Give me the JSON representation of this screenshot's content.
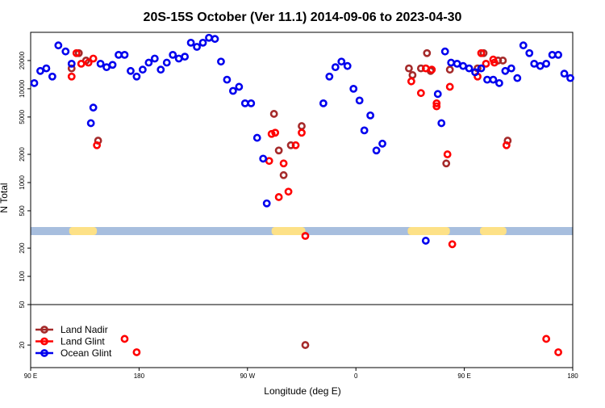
{
  "chart_data": {
    "type": "scatter",
    "title": "20S-15S October (Ver 11.1)   2014-09-06 to 2023-04-30",
    "xlabel": "Longitude (deg E)",
    "ylabel": "N Total",
    "x_range_deg": [
      90,
      540
    ],
    "xticks": [
      {
        "value": 90,
        "label": "90 E"
      },
      {
        "value": 180,
        "label": "180"
      },
      {
        "value": 270,
        "label": "90 W"
      },
      {
        "value": 360,
        "label": "0"
      },
      {
        "value": 450,
        "label": "90 E"
      },
      {
        "value": 540,
        "label": "180"
      }
    ],
    "yscale": "log",
    "upper_panel": {
      "ylim": [
        50,
        40000
      ],
      "yticks": [
        {
          "value": 50,
          "label": "50"
        },
        {
          "value": 100,
          "label": "100"
        },
        {
          "value": 200,
          "label": "200"
        },
        {
          "value": 500,
          "label": "500"
        },
        {
          "value": 1000,
          "label": "1000"
        },
        {
          "value": 2000,
          "label": "2000"
        },
        {
          "value": 5000,
          "label": "5000"
        },
        {
          "value": 10000,
          "label": "10000"
        },
        {
          "value": 20000,
          "label": "20000"
        }
      ]
    },
    "lower_panel": {
      "ylim": [
        12,
        50
      ],
      "yticks": [
        {
          "value": 20,
          "label": "20"
        }
      ]
    },
    "colors": {
      "land_nadir": "#a52a2a",
      "land_glint": "#ff0000",
      "ocean_glint": "#0000ee",
      "map_ocean": "#a7bede",
      "map_land": "#fde187"
    },
    "legend_position": "bottom-left",
    "series": [
      {
        "name": "Land Nadir",
        "color": "#a52a2a",
        "points": [
          [
            124,
            16500
          ],
          [
            130,
            24000
          ],
          [
            136,
            20000
          ],
          [
            146,
            2800
          ],
          [
            292,
            5400
          ],
          [
            296,
            2200
          ],
          [
            300,
            1200
          ],
          [
            306,
            2500
          ],
          [
            315,
            4000
          ],
          [
            404,
            16500
          ],
          [
            407,
            14000
          ],
          [
            414,
            16500
          ],
          [
            419,
            24000
          ],
          [
            422,
            15500
          ],
          [
            435,
            1600
          ],
          [
            438,
            16000
          ],
          [
            461,
            16500
          ],
          [
            466,
            24000
          ],
          [
            478,
            20000
          ],
          [
            482,
            20000
          ],
          [
            486,
            2800
          ],
          [
            318,
            20
          ]
        ]
      },
      {
        "name": "Land Glint",
        "color": "#ff0000",
        "points": [
          [
            124,
            13500
          ],
          [
            128,
            24000
          ],
          [
            132,
            18500
          ],
          [
            138,
            19000
          ],
          [
            142,
            21000
          ],
          [
            145,
            2500
          ],
          [
            168,
            23
          ],
          [
            178,
            17
          ],
          [
            288,
            1700
          ],
          [
            290,
            3300
          ],
          [
            293,
            3400
          ],
          [
            296,
            700
          ],
          [
            300,
            1600
          ],
          [
            304,
            800
          ],
          [
            310,
            2500
          ],
          [
            315,
            3400
          ],
          [
            318,
            270
          ],
          [
            406,
            12000
          ],
          [
            414,
            9000
          ],
          [
            418,
            16500
          ],
          [
            423,
            16000
          ],
          [
            427,
            7000
          ],
          [
            427,
            6500
          ],
          [
            436,
            2000
          ],
          [
            438,
            10500
          ],
          [
            440,
            220
          ],
          [
            461,
            13500
          ],
          [
            464,
            24000
          ],
          [
            468,
            18500
          ],
          [
            474,
            20500
          ],
          [
            475,
            19000
          ],
          [
            485,
            2500
          ],
          [
            518,
            23
          ],
          [
            528,
            17
          ]
        ]
      },
      {
        "name": "Ocean Glint",
        "color": "#0000ee",
        "points": [
          [
            93,
            11500
          ],
          [
            98,
            15500
          ],
          [
            103,
            16500
          ],
          [
            108,
            13500
          ],
          [
            113,
            29000
          ],
          [
            119,
            25000
          ],
          [
            124,
            18500
          ],
          [
            140,
            4300
          ],
          [
            142,
            6300
          ],
          [
            148,
            18500
          ],
          [
            153,
            17000
          ],
          [
            158,
            18000
          ],
          [
            163,
            23000
          ],
          [
            168,
            23000
          ],
          [
            173,
            15500
          ],
          [
            178,
            13500
          ],
          [
            183,
            16000
          ],
          [
            188,
            19000
          ],
          [
            193,
            21000
          ],
          [
            198,
            16000
          ],
          [
            203,
            19000
          ],
          [
            208,
            23000
          ],
          [
            213,
            21000
          ],
          [
            218,
            22000
          ],
          [
            223,
            31000
          ],
          [
            228,
            28000
          ],
          [
            233,
            31000
          ],
          [
            238,
            35000
          ],
          [
            243,
            34000
          ],
          [
            248,
            19500
          ],
          [
            253,
            12500
          ],
          [
            258,
            9500
          ],
          [
            263,
            10500
          ],
          [
            268,
            7000
          ],
          [
            273,
            7000
          ],
          [
            278,
            3000
          ],
          [
            283,
            1800
          ],
          [
            286,
            600
          ],
          [
            333,
            7000
          ],
          [
            338,
            13500
          ],
          [
            343,
            17000
          ],
          [
            348,
            19500
          ],
          [
            353,
            17500
          ],
          [
            358,
            10000
          ],
          [
            363,
            7500
          ],
          [
            367,
            3600
          ],
          [
            372,
            5200
          ],
          [
            377,
            2200
          ],
          [
            382,
            2600
          ],
          [
            418,
            240
          ],
          [
            428,
            8800
          ],
          [
            431,
            4300
          ],
          [
            434,
            25000
          ],
          [
            439,
            19000
          ],
          [
            444,
            18500
          ],
          [
            449,
            17500
          ],
          [
            454,
            16500
          ],
          [
            459,
            15000
          ],
          [
            464,
            16500
          ],
          [
            469,
            12500
          ],
          [
            474,
            12500
          ],
          [
            479,
            11500
          ],
          [
            484,
            15500
          ],
          [
            489,
            16500
          ],
          [
            494,
            13000
          ],
          [
            499,
            29000
          ],
          [
            504,
            24000
          ],
          [
            508,
            18500
          ],
          [
            513,
            17500
          ],
          [
            518,
            18500
          ],
          [
            523,
            23000
          ],
          [
            528,
            23000
          ],
          [
            533,
            14500
          ],
          [
            538,
            13000
          ]
        ]
      }
    ],
    "map_strip": {
      "ocean_color": "#a7bede",
      "land_color": "#fde187",
      "land_ranges_deg": [
        [
          122,
          145
        ],
        [
          290,
          318
        ],
        [
          403,
          438
        ],
        [
          463,
          485
        ]
      ]
    }
  }
}
